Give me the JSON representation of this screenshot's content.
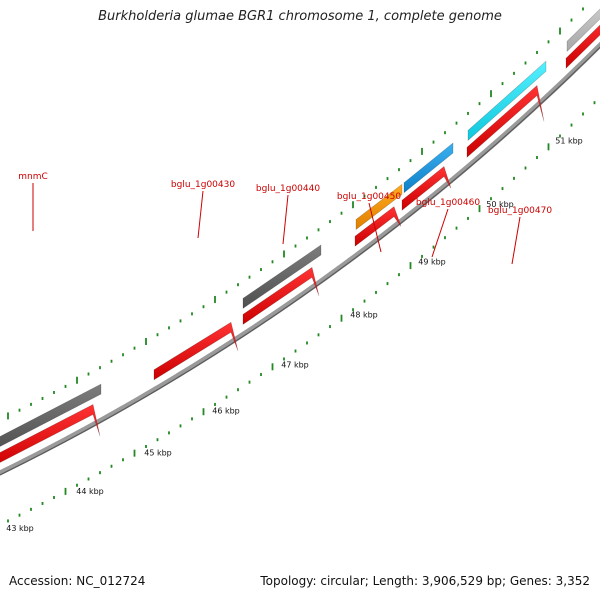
{
  "title": "Burkholderia glumae BGR1 chromosome 1, complete genome",
  "footer": {
    "accession": "Accession: NC_012724",
    "stats": "Topology: circular; Length: 3,906,529 bp; Genes: 3,352"
  },
  "colors": {
    "backbone": "#8a8a8a",
    "cds": "#ee0000",
    "gene_gray": "#6a6a6a",
    "gene_light_gray": "#bbbbbb",
    "gene_orange": "#ff9900",
    "gene_blue": "#1a9be0",
    "gene_cyan": "#22ddee",
    "tick": "#228822",
    "label": "#cc0000",
    "scale_label": "#111111"
  },
  "scale_labels": [
    "43 kbp",
    "44 kbp",
    "45 kbp",
    "46 kbp",
    "47 kbp",
    "48 kbp",
    "49 kbp",
    "50 kbp",
    "51 kbp"
  ],
  "gene_labels": [
    "mnmC",
    "bglu_1g00430",
    "bglu_1g00440",
    "bglu_1g00450",
    "bglu_1g00460",
    "bglu_1g00470"
  ]
}
